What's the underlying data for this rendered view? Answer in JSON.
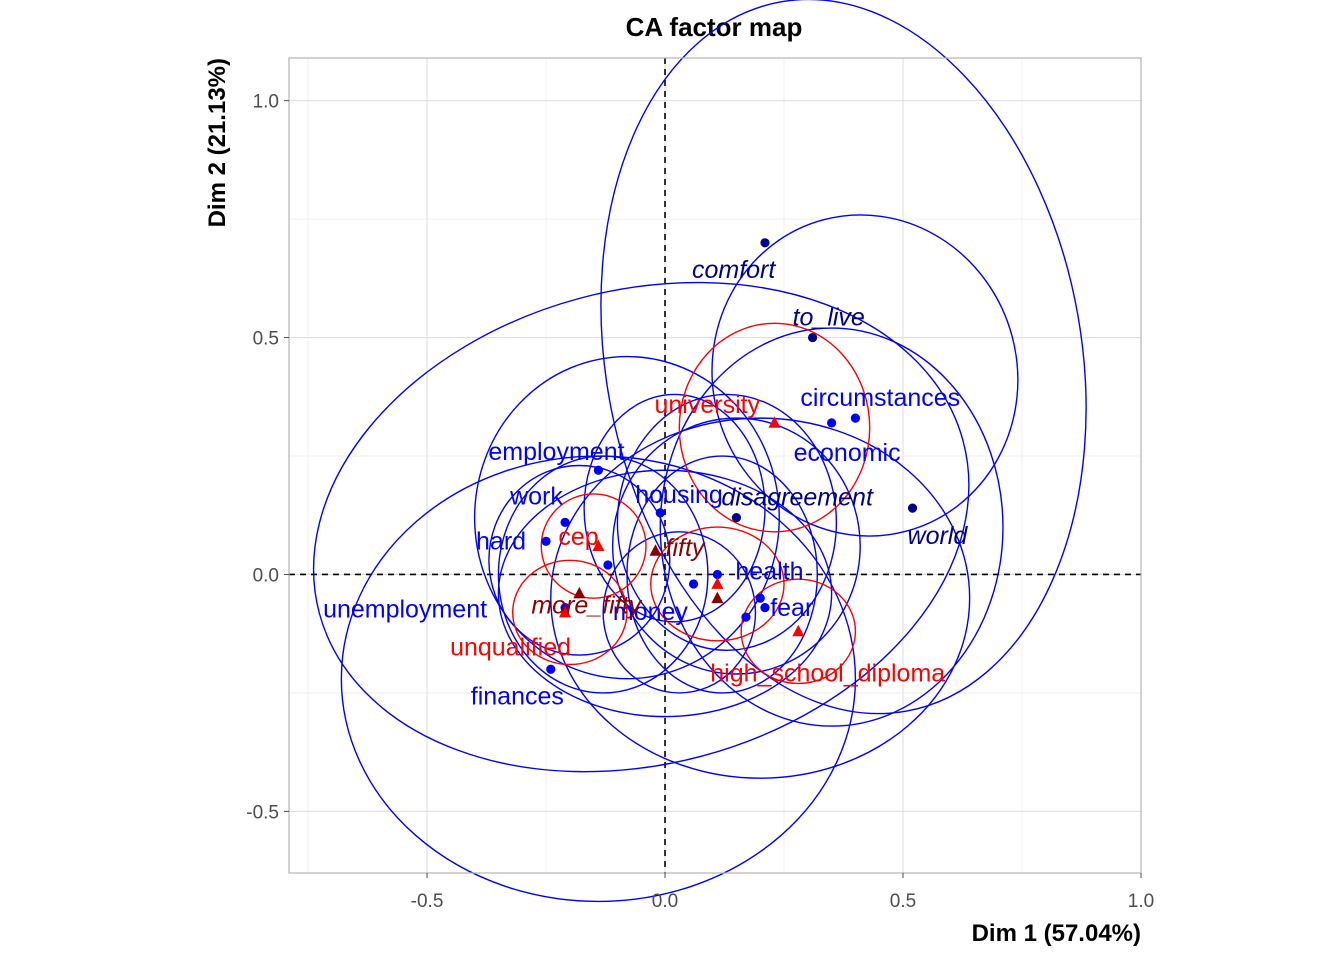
{
  "chart_data": {
    "type": "scatter",
    "title": "CA factor map",
    "xlabel": "Dim 1 (57.04%)",
    "ylabel": "Dim 2 (21.13%)",
    "xlim": [
      -0.79,
      1.0
    ],
    "ylim": [
      -0.63,
      1.09
    ],
    "xticks": [
      -0.5,
      0.0,
      0.5,
      1.0
    ],
    "yticks": [
      -0.5,
      0.0,
      0.5,
      1.0
    ],
    "xtick_labels": [
      "-0.5",
      "0.0",
      "0.5",
      "1.0"
    ],
    "ytick_labels": [
      "-0.5",
      "0.0",
      "0.5",
      "1.0"
    ],
    "grid": true,
    "reference_lines": {
      "x": 0,
      "y": 0,
      "style": "dashed"
    },
    "colors": {
      "active_rows": "#0000ff",
      "supplementary_rows": "#00008b",
      "active_cols": "#ff0000",
      "supplementary_cols": "#8b0000",
      "ellipse_rows": "#0000ff",
      "ellipse_cols": "#ff0000"
    },
    "series": [
      {
        "group": "active_rows",
        "marker": "circle",
        "points": [
          {
            "label": "circumstances",
            "x": 0.4,
            "y": 0.33
          },
          {
            "label": "economic",
            "x": 0.35,
            "y": 0.32
          },
          {
            "label": "employment",
            "x": -0.14,
            "y": 0.22
          },
          {
            "label": "work",
            "x": -0.21,
            "y": 0.11
          },
          {
            "label": "housing",
            "x": -0.01,
            "y": 0.13
          },
          {
            "label": "hard",
            "x": -0.25,
            "y": 0.07
          },
          {
            "label": "health",
            "x": 0.11,
            "y": 0.0
          },
          {
            "label": "fear",
            "x": 0.2,
            "y": -0.05
          },
          {
            "label": "unemployment",
            "x": -0.21,
            "y": -0.07
          },
          {
            "label": "money",
            "x": -0.12,
            "y": 0.02
          },
          {
            "label": "finances",
            "x": -0.24,
            "y": -0.2
          }
        ],
        "unlabeled_points": [
          {
            "x": 0.06,
            "y": -0.02
          },
          {
            "x": 0.21,
            "y": -0.07
          },
          {
            "x": 0.17,
            "y": -0.09
          }
        ]
      },
      {
        "group": "supplementary_rows",
        "marker": "circle",
        "points": [
          {
            "label": "comfort",
            "x": 0.21,
            "y": 0.7
          },
          {
            "label": "to_live",
            "x": 0.31,
            "y": 0.5
          },
          {
            "label": "disagreement",
            "x": 0.15,
            "y": 0.12
          },
          {
            "label": "world",
            "x": 0.52,
            "y": 0.14
          }
        ]
      },
      {
        "group": "active_cols",
        "marker": "triangle",
        "points": [
          {
            "label": "university",
            "x": 0.23,
            "y": 0.32
          },
          {
            "label": "cep",
            "x": -0.14,
            "y": 0.06
          },
          {
            "label": "unqualified",
            "x": -0.21,
            "y": -0.08
          },
          {
            "label": "high_school_diploma",
            "x": 0.28,
            "y": -0.12
          }
        ],
        "unlabeled_points": [
          {
            "x": 0.11,
            "y": -0.02
          }
        ]
      },
      {
        "group": "supplementary_cols",
        "marker": "triangle",
        "points": [
          {
            "label": "fifty",
            "x": -0.02,
            "y": 0.05
          },
          {
            "label": "more_fifty",
            "x": -0.18,
            "y": -0.04
          }
        ],
        "unlabeled_points": [
          {
            "x": 0.11,
            "y": -0.05
          }
        ]
      }
    ],
    "ellipses": [
      {
        "group": "rows",
        "cx": 0.375,
        "cy": 0.46,
        "rx": 0.5,
        "ry": 0.76,
        "rotate": -10
      },
      {
        "group": "rows",
        "cx": 0.42,
        "cy": 0.42,
        "rx": 0.32,
        "ry": 0.34,
        "rotate": -15
      },
      {
        "group": "rows",
        "cx": -0.05,
        "cy": 0.1,
        "rx": 0.7,
        "ry": 0.5,
        "rotate": -15
      },
      {
        "group": "rows",
        "cx": -0.08,
        "cy": 0.12,
        "rx": 0.32,
        "ry": 0.34,
        "rotate": 0
      },
      {
        "group": "rows",
        "cx": -0.14,
        "cy": -0.22,
        "rx": 0.54,
        "ry": 0.47,
        "rotate": 0
      },
      {
        "group": "rows",
        "cx": 0.2,
        "cy": -0.05,
        "rx": 0.44,
        "ry": 0.38,
        "rotate": 0
      },
      {
        "group": "rows",
        "cx": 0.35,
        "cy": 0.1,
        "rx": 0.36,
        "ry": 0.42,
        "rotate": 0
      },
      {
        "group": "rows",
        "cx": 0.13,
        "cy": 0.11,
        "rx": 0.23,
        "ry": 0.27,
        "rotate": 0
      },
      {
        "group": "rows",
        "cx": 0.02,
        "cy": 0.14,
        "rx": 0.19,
        "ry": 0.24,
        "rotate": 0
      },
      {
        "group": "rows",
        "cx": 0.12,
        "cy": 0.0,
        "rx": 0.2,
        "ry": 0.25,
        "rotate": 0
      },
      {
        "group": "rows",
        "cx": -0.13,
        "cy": 0.0,
        "rx": 0.22,
        "ry": 0.25,
        "rotate": 0
      },
      {
        "group": "rows",
        "cx": 0.0,
        "cy": -0.04,
        "rx": 0.35,
        "ry": 0.26,
        "rotate": 0
      },
      {
        "group": "rows",
        "cx": -0.18,
        "cy": 0.03,
        "rx": 0.19,
        "ry": 0.2,
        "rotate": 0
      },
      {
        "group": "rows",
        "cx": 0.15,
        "cy": 0.06,
        "rx": 0.26,
        "ry": 0.27,
        "rotate": 0
      },
      {
        "group": "rows",
        "cx": 0.03,
        "cy": -0.08,
        "rx": 0.16,
        "ry": 0.17,
        "rotate": 0
      },
      {
        "group": "cols",
        "cx": 0.23,
        "cy": 0.31,
        "rx": 0.2,
        "ry": 0.22,
        "rotate": 0
      },
      {
        "group": "cols",
        "cx": -0.15,
        "cy": 0.06,
        "rx": 0.11,
        "ry": 0.11,
        "rotate": 0
      },
      {
        "group": "cols",
        "cx": -0.2,
        "cy": -0.08,
        "rx": 0.12,
        "ry": 0.11,
        "rotate": 0
      },
      {
        "group": "cols",
        "cx": 0.28,
        "cy": -0.12,
        "rx": 0.12,
        "ry": 0.11,
        "rotate": 0
      },
      {
        "group": "cols",
        "cx": 0.11,
        "cy": -0.02,
        "rx": 0.14,
        "ry": 0.12,
        "rotate": 0
      }
    ]
  }
}
